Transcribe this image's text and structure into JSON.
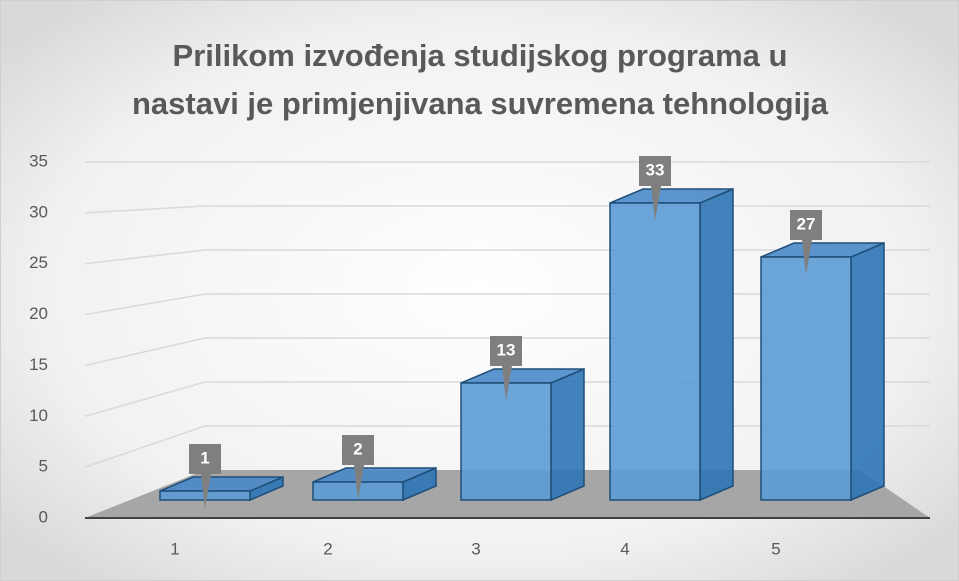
{
  "chart_data": {
    "type": "bar3d",
    "title": [
      "Prilikom izvođenja studijskog programa u",
      "nastavi je primjenjivana suvremena tehnologija"
    ],
    "categories": [
      "1",
      "2",
      "3",
      "4",
      "5"
    ],
    "values": [
      1,
      2,
      13,
      33,
      27
    ],
    "color": "#5b9bd5",
    "ylim": [
      0,
      35
    ],
    "yticks": [
      0,
      5,
      10,
      15,
      20,
      25,
      30,
      35
    ],
    "grid": true
  }
}
